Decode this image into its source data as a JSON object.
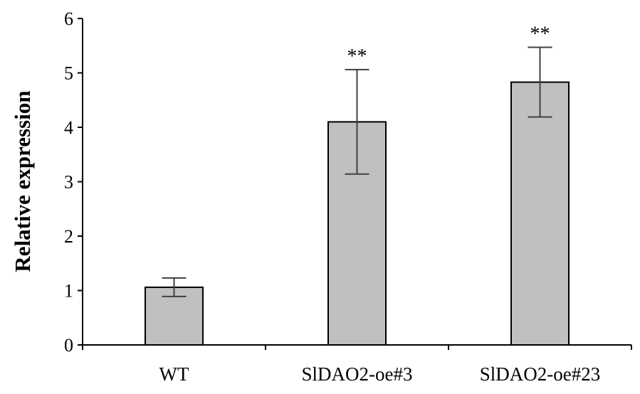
{
  "chart_data": {
    "type": "bar",
    "title": "",
    "xlabel": "",
    "ylabel": "Relative expression",
    "ylim": [
      0,
      6
    ],
    "yticks": [
      "0",
      "1",
      "2",
      "3",
      "4",
      "5",
      "6"
    ],
    "categories": [
      "WT",
      "SlDAO2-oe#3",
      "SlDAO2-oe#23"
    ],
    "values": [
      1.06,
      4.1,
      4.83
    ],
    "errors": [
      0.17,
      0.96,
      0.64
    ],
    "significance": [
      "",
      "**",
      "**"
    ],
    "grid": false,
    "legend": "none"
  },
  "colors": {
    "bar_fill": "#c0c0c0",
    "bar_stroke": "#000000",
    "error_bar": "#404040",
    "axis": "#000000"
  }
}
